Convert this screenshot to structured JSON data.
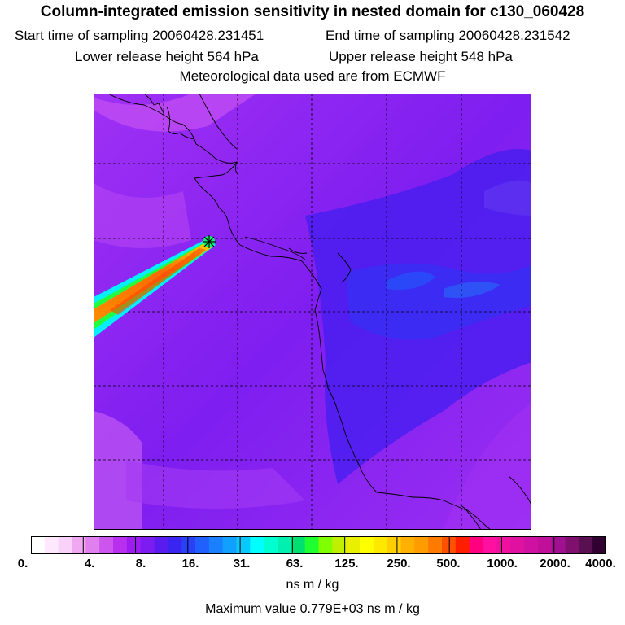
{
  "header": {
    "title": "Column-integrated emission sensitivity in nested domain for c130_060428",
    "start": "Start time of sampling 20060428.231451",
    "end": "End time of sampling 20060428.231542",
    "lower": "Lower release height  564 hPa",
    "upper": "Upper release height  548 hPa",
    "met": "Meteorological data used are from ECMWF"
  },
  "colorbar": {
    "labels": [
      "0.",
      "4.",
      "8.",
      "16.",
      "31.",
      "63.",
      "125.",
      "250.",
      "500.",
      "1000.",
      "2000.",
      "4000."
    ],
    "colors": [
      "#ffffff",
      "#fde8fd",
      "#f8d2f8",
      "#f0a8f0",
      "#e080ee",
      "#cc55ee",
      "#b82ff0",
      "#9c1cf2",
      "#7c1cf0",
      "#5a1cee",
      "#3a24f2",
      "#2a40f8",
      "#2060ff",
      "#1a80ff",
      "#10a0ff",
      "#08c8ff",
      "#00ffff",
      "#00ffd0",
      "#00f0b0",
      "#00e070",
      "#20ff30",
      "#80ff00",
      "#c0f000",
      "#e8f000",
      "#ffff00",
      "#ffe800",
      "#ffd000",
      "#ffb000",
      "#ff9c00",
      "#ff7a00",
      "#ff5000",
      "#ff1e00",
      "#ff0080",
      "#ff10a0",
      "#f010a0",
      "#e010a0",
      "#d010a0",
      "#c0109a",
      "#a01090",
      "#80106e",
      "#581050",
      "#300030"
    ],
    "units": "ns m / kg",
    "max_value": "Maximum value  0.779E+03 ns m / kg"
  }
}
